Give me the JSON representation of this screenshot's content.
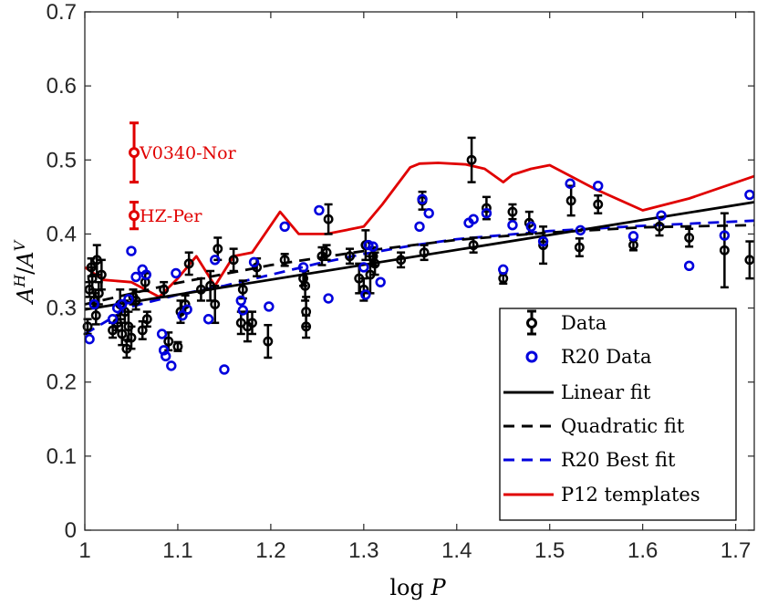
{
  "chart_data": {
    "type": "scatter",
    "xlabel": "log P",
    "ylabel": "A^H / A^V",
    "xlim": [
      1.0,
      1.72
    ],
    "ylim": [
      0.0,
      0.7
    ],
    "xticks": [
      "1",
      "1.1",
      "1.2",
      "1.3",
      "1.4",
      "1.5",
      "1.6",
      "1.7"
    ],
    "yticks": [
      "0",
      "0.1",
      "0.2",
      "0.3",
      "0.4",
      "0.5",
      "0.6",
      "0.7"
    ],
    "grid": false,
    "legend_position": "bottom-right",
    "legend": [
      "Data",
      "R20 Data",
      "Linear fit",
      "Quadratic fit",
      "R20 Best fit",
      "P12 templates"
    ],
    "colors": {
      "data": "#000000",
      "r20": "#0000dd",
      "p12": "#e00000",
      "axis": "#262626"
    },
    "series": [
      {
        "name": "Data",
        "kind": "errorbar",
        "points": [
          [
            1.003,
            0.275,
            0.01
          ],
          [
            1.005,
            0.325,
            0.01
          ],
          [
            1.007,
            0.355,
            0.012
          ],
          [
            1.008,
            0.34,
            0.015
          ],
          [
            1.01,
            0.31,
            0.01
          ],
          [
            1.012,
            0.29,
            0.012
          ],
          [
            1.013,
            0.365,
            0.02
          ],
          [
            1.015,
            0.32,
            0.015
          ],
          [
            1.018,
            0.345,
            0.02
          ],
          [
            1.03,
            0.27,
            0.01
          ],
          [
            1.035,
            0.28,
            0.01
          ],
          [
            1.038,
            0.305,
            0.02
          ],
          [
            1.04,
            0.265,
            0.015
          ],
          [
            1.043,
            0.295,
            0.015
          ],
          [
            1.045,
            0.245,
            0.012
          ],
          [
            1.047,
            0.275,
            0.02
          ],
          [
            1.05,
            0.26,
            0.015
          ],
          [
            1.052,
            0.315,
            0.01
          ],
          [
            1.055,
            0.31,
            0.012
          ],
          [
            1.062,
            0.27,
            0.012
          ],
          [
            1.065,
            0.335,
            0.012
          ],
          [
            1.067,
            0.285,
            0.01
          ],
          [
            1.085,
            0.325,
            0.01
          ],
          [
            1.09,
            0.255,
            0.012
          ],
          [
            1.1,
            0.248,
            0.006
          ],
          [
            1.103,
            0.295,
            0.015
          ],
          [
            1.108,
            0.305,
            0.012
          ],
          [
            1.112,
            0.36,
            0.015
          ],
          [
            1.125,
            0.325,
            0.015
          ],
          [
            1.135,
            0.33,
            0.02
          ],
          [
            1.14,
            0.305,
            0.025
          ],
          [
            1.143,
            0.38,
            0.015
          ],
          [
            1.16,
            0.365,
            0.015
          ],
          [
            1.168,
            0.28,
            0.015
          ],
          [
            1.17,
            0.325,
            0.012
          ],
          [
            1.175,
            0.275,
            0.02
          ],
          [
            1.18,
            0.28,
            0.015
          ],
          [
            1.185,
            0.355,
            0.012
          ],
          [
            1.197,
            0.255,
            0.022
          ],
          [
            1.215,
            0.365,
            0.008
          ],
          [
            1.235,
            0.34,
            0.01
          ],
          [
            1.237,
            0.33,
            0.02
          ],
          [
            1.238,
            0.295,
            0.02
          ],
          [
            1.238,
            0.275,
            0.015
          ],
          [
            1.255,
            0.37,
            0.012
          ],
          [
            1.262,
            0.42,
            0.02
          ],
          [
            1.26,
            0.375,
            0.01
          ],
          [
            1.285,
            0.37,
            0.01
          ],
          [
            1.295,
            0.34,
            0.02
          ],
          [
            1.3,
            0.325,
            0.015
          ],
          [
            1.302,
            0.385,
            0.02
          ],
          [
            1.307,
            0.345,
            0.025
          ],
          [
            1.31,
            0.37,
            0.012
          ],
          [
            1.312,
            0.36,
            0.015
          ],
          [
            1.34,
            0.365,
            0.01
          ],
          [
            1.363,
            0.445,
            0.012
          ],
          [
            1.365,
            0.375,
            0.01
          ],
          [
            1.416,
            0.5,
            0.03
          ],
          [
            1.418,
            0.385,
            0.01
          ],
          [
            1.432,
            0.435,
            0.015
          ],
          [
            1.45,
            0.34,
            0.007
          ],
          [
            1.46,
            0.43,
            0.01
          ],
          [
            1.478,
            0.415,
            0.015
          ],
          [
            1.493,
            0.385,
            0.025
          ],
          [
            1.523,
            0.445,
            0.02
          ],
          [
            1.532,
            0.382,
            0.012
          ],
          [
            1.552,
            0.44,
            0.012
          ],
          [
            1.59,
            0.385,
            0.007
          ],
          [
            1.618,
            0.41,
            0.012
          ],
          [
            1.65,
            0.395,
            0.012
          ],
          [
            1.688,
            0.378,
            0.05
          ],
          [
            1.715,
            0.365,
            0.025
          ]
        ]
      },
      {
        "name": "R20 Data",
        "kind": "scatter",
        "points": [
          [
            1.005,
            0.258
          ],
          [
            1.01,
            0.305
          ],
          [
            1.03,
            0.285
          ],
          [
            1.035,
            0.3
          ],
          [
            1.04,
            0.305
          ],
          [
            1.047,
            0.312
          ],
          [
            1.05,
            0.377
          ],
          [
            1.055,
            0.342
          ],
          [
            1.062,
            0.352
          ],
          [
            1.066,
            0.345
          ],
          [
            1.083,
            0.265
          ],
          [
            1.085,
            0.243
          ],
          [
            1.087,
            0.235
          ],
          [
            1.093,
            0.222
          ],
          [
            1.098,
            0.347
          ],
          [
            1.105,
            0.29
          ],
          [
            1.11,
            0.298
          ],
          [
            1.133,
            0.285
          ],
          [
            1.14,
            0.365
          ],
          [
            1.15,
            0.217
          ],
          [
            1.168,
            0.31
          ],
          [
            1.17,
            0.297
          ],
          [
            1.182,
            0.362
          ],
          [
            1.198,
            0.302
          ],
          [
            1.215,
            0.41
          ],
          [
            1.235,
            0.355
          ],
          [
            1.252,
            0.432
          ],
          [
            1.262,
            0.313
          ],
          [
            1.3,
            0.355
          ],
          [
            1.302,
            0.318
          ],
          [
            1.305,
            0.385
          ],
          [
            1.31,
            0.383
          ],
          [
            1.318,
            0.335
          ],
          [
            1.36,
            0.41
          ],
          [
            1.363,
            0.447
          ],
          [
            1.37,
            0.428
          ],
          [
            1.413,
            0.415
          ],
          [
            1.418,
            0.42
          ],
          [
            1.432,
            0.428
          ],
          [
            1.45,
            0.352
          ],
          [
            1.46,
            0.412
          ],
          [
            1.48,
            0.41
          ],
          [
            1.493,
            0.39
          ],
          [
            1.522,
            0.468
          ],
          [
            1.533,
            0.405
          ],
          [
            1.552,
            0.465
          ],
          [
            1.59,
            0.397
          ],
          [
            1.62,
            0.425
          ],
          [
            1.65,
            0.357
          ],
          [
            1.688,
            0.398
          ],
          [
            1.715,
            0.453
          ]
        ]
      },
      {
        "name": "Linear fit",
        "kind": "line",
        "style": "solid",
        "x": [
          1.0,
          1.72
        ],
        "y": [
          0.298,
          0.443
        ]
      },
      {
        "name": "Quadratic fit",
        "kind": "line",
        "style": "dashed",
        "x": [
          1.0,
          1.1,
          1.2,
          1.3,
          1.4,
          1.5,
          1.6,
          1.72
        ],
        "y": [
          0.305,
          0.334,
          0.358,
          0.377,
          0.392,
          0.402,
          0.409,
          0.412
        ]
      },
      {
        "name": "R20 Best fit",
        "kind": "line",
        "style": "dashed",
        "x": [
          1.0,
          1.05,
          1.1,
          1.15,
          1.2,
          1.25,
          1.3,
          1.35,
          1.4,
          1.5,
          1.6,
          1.72
        ],
        "y": [
          0.265,
          0.302,
          0.318,
          0.33,
          0.345,
          0.36,
          0.373,
          0.384,
          0.393,
          0.404,
          0.411,
          0.418
        ]
      },
      {
        "name": "P12 templates",
        "kind": "line",
        "style": "solid",
        "x": [
          1.0,
          1.02,
          1.05,
          1.08,
          1.1,
          1.12,
          1.14,
          1.16,
          1.18,
          1.21,
          1.23,
          1.26,
          1.3,
          1.32,
          1.35,
          1.36,
          1.38,
          1.41,
          1.43,
          1.45,
          1.46,
          1.48,
          1.5,
          1.55,
          1.6,
          1.65,
          1.72
        ],
        "y": [
          0.355,
          0.338,
          0.335,
          0.315,
          0.34,
          0.37,
          0.33,
          0.37,
          0.375,
          0.43,
          0.4,
          0.4,
          0.41,
          0.44,
          0.49,
          0.495,
          0.496,
          0.494,
          0.488,
          0.47,
          0.48,
          0.488,
          0.493,
          0.46,
          0.432,
          0.448,
          0.478
        ]
      }
    ],
    "highlighted": [
      {
        "label": "V0340-Nor",
        "x": 1.053,
        "y": 0.51,
        "err": 0.04
      },
      {
        "label": "HZ-Per",
        "x": 1.053,
        "y": 0.425,
        "err": 0.018
      }
    ]
  }
}
